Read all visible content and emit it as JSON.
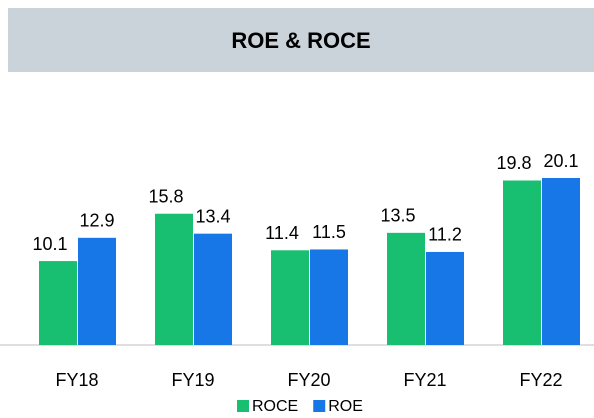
{
  "chart_data": {
    "type": "bar",
    "title": "ROE & ROCE",
    "categories": [
      "FY18",
      "FY19",
      "FY20",
      "FY21",
      "FY22"
    ],
    "series": [
      {
        "name": "ROCE",
        "color": "#19bf70",
        "values": [
          10.1,
          15.8,
          11.4,
          13.5,
          19.8
        ]
      },
      {
        "name": "ROE",
        "color": "#1877e6",
        "values": [
          12.9,
          13.4,
          11.5,
          11.2,
          20.1
        ]
      }
    ]
  }
}
